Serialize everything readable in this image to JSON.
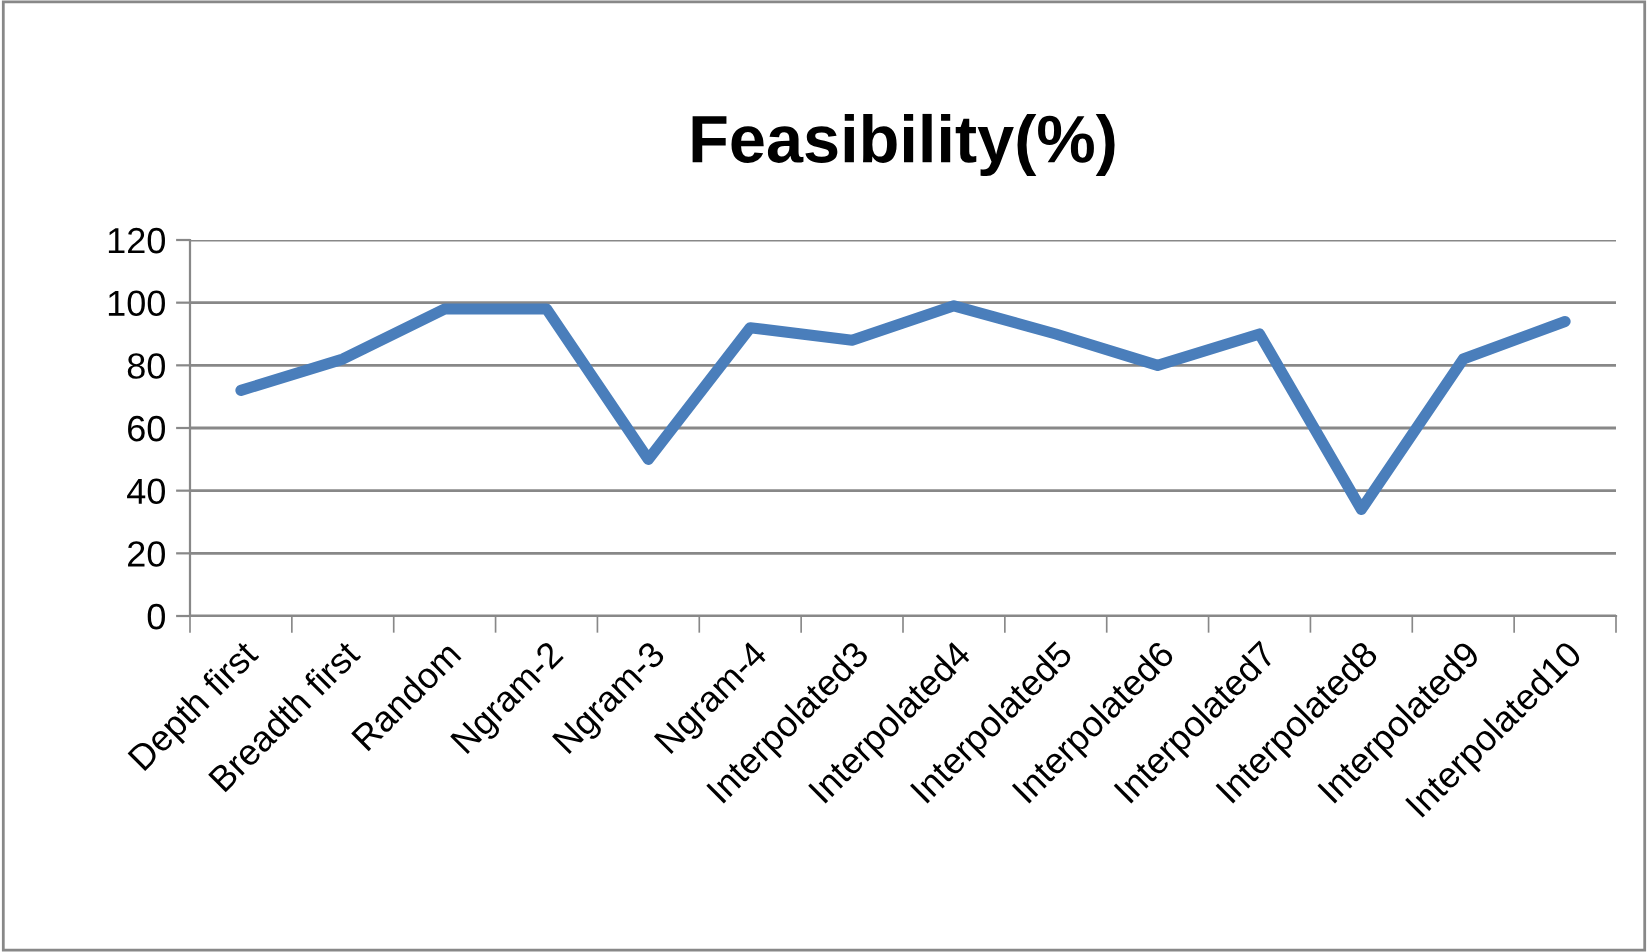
{
  "chart_data": {
    "type": "line",
    "title": "Feasibility(%)",
    "categories": [
      "Depth first",
      "Breadth first",
      "Random",
      "Ngram-2",
      "Ngram-3",
      "Ngram-4",
      "Interpolated3",
      "Interpolated4",
      "Interpolated5",
      "Interpolated6",
      "Interpolated7",
      "Interpolated8",
      "Interpolated9",
      "Interpolated10"
    ],
    "series": [
      {
        "color": "#4a7ebb",
        "values": [
          72,
          82,
          98,
          98,
          50,
          92,
          88,
          99,
          90,
          80,
          90,
          34,
          82,
          94
        ]
      }
    ],
    "ylim": [
      0,
      120
    ],
    "yticks": [
      0,
      20,
      40,
      60,
      80,
      100,
      120
    ],
    "grid": "y",
    "legend": false,
    "marker": "none",
    "line_style": "solid"
  }
}
